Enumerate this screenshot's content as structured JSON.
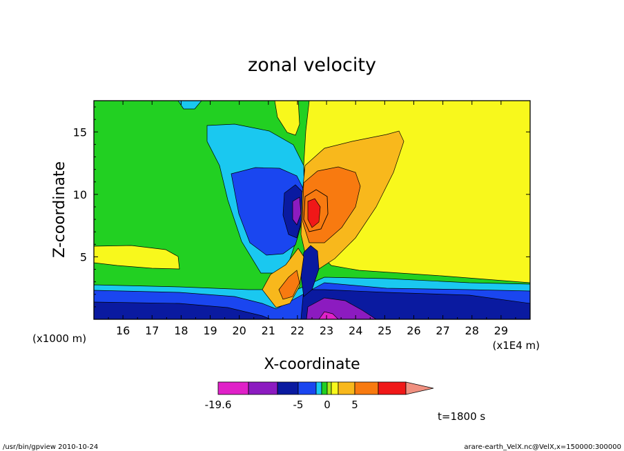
{
  "chart_data": {
    "type": "heatmap",
    "title": "zonal velocity",
    "xlabel": "X-coordinate",
    "ylabel": "Z-coordinate",
    "x_unit_label": "(x1E4 m)",
    "y_unit_label": "(x1000 m)",
    "xlim": [
      15,
      30
    ],
    "ylim": [
      0,
      17.5
    ],
    "x_ticks": [
      "16",
      "17",
      "18",
      "19",
      "20",
      "21",
      "22",
      "23",
      "24",
      "25",
      "26",
      "27",
      "28",
      "29"
    ],
    "y_ticks": [
      "5",
      "10",
      "15"
    ],
    "colorbar": {
      "tick_labels": [
        "-19.6",
        "-5",
        "0",
        "5"
      ],
      "colors": [
        "#e021c8",
        "#8c1bc0",
        "#0a1aa0",
        "#1a46f0",
        "#1ac8f0",
        "#22d022",
        "#a8e81c",
        "#f8f81c",
        "#f8b81c",
        "#f87a10",
        "#f01818",
        "#f09080"
      ]
    },
    "time_label": "t=1800 s",
    "footer_left": "/usr/bin/gpview   2010-10-24",
    "footer_right": "arare-earth_VelX.nc@VelX,x=150000:300000",
    "grid": false
  }
}
